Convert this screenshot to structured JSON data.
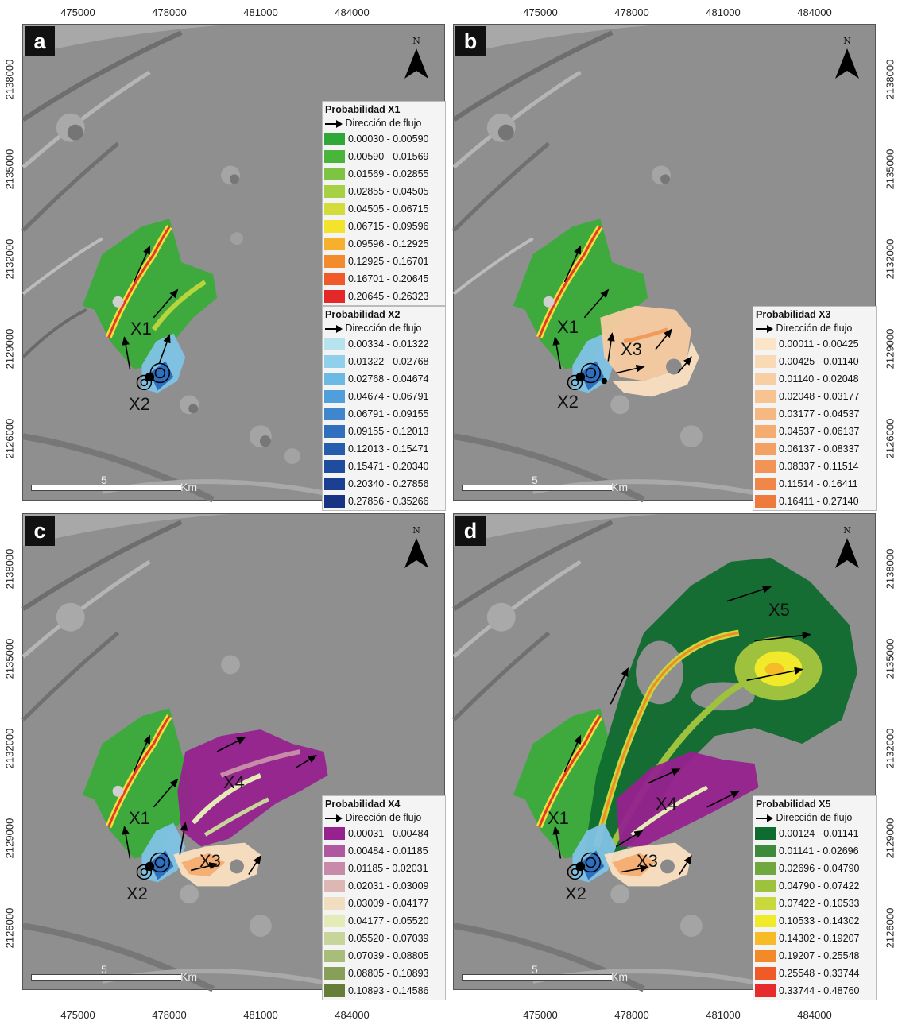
{
  "axes": {
    "x_ticks": [
      "475000",
      "478000",
      "481000",
      "484000"
    ],
    "y_ticks": [
      "2138000",
      "2135000",
      "2132000",
      "2129000",
      "2126000"
    ]
  },
  "panels": [
    {
      "label": "a",
      "scale_number": "5",
      "scale_unit": "Km",
      "north": "N",
      "vents": [
        "X1",
        "X2"
      ],
      "flows": [
        "X1",
        "X2"
      ]
    },
    {
      "label": "b",
      "scale_number": "5",
      "scale_unit": "Km",
      "north": "N",
      "vents": [
        "X1",
        "X2",
        "X3"
      ],
      "flows": [
        "X1",
        "X2",
        "X3"
      ]
    },
    {
      "label": "c",
      "scale_number": "5",
      "scale_unit": "Km",
      "north": "N",
      "vents": [
        "X1",
        "X2",
        "X3",
        "X4"
      ],
      "flows": [
        "X1",
        "X2",
        "X3",
        "X4"
      ]
    },
    {
      "label": "d",
      "scale_number": "5",
      "scale_unit": "Km",
      "north": "N",
      "vents": [
        "X1",
        "X2",
        "X3",
        "X4",
        "X5"
      ],
      "flows": [
        "X1",
        "X2",
        "X3",
        "X4",
        "X5"
      ]
    }
  ],
  "legends": {
    "x1": {
      "title": "Probabilidad X1",
      "flow_label": "Dirección de flujo",
      "classes": [
        "0.00030 - 0.00590",
        "0.00590 - 0.01569",
        "0.01569 - 0.02855",
        "0.02855 - 0.04505",
        "0.04505 - 0.06715",
        "0.06715 - 0.09596",
        "0.09596 - 0.12925",
        "0.12925 - 0.16701",
        "0.16701 - 0.20645",
        "0.20645 - 0.26323"
      ],
      "colors": [
        "#2fa838",
        "#49b53b",
        "#7cc442",
        "#a6d145",
        "#d3dc3a",
        "#f4e32c",
        "#f6b02e",
        "#f38a2c",
        "#f05a2a",
        "#e3282a"
      ]
    },
    "x2": {
      "title": "Probabilidad X2",
      "flow_label": "Dirección de flujo",
      "classes": [
        "0.00334 - 0.01322",
        "0.01322 - 0.02768",
        "0.02768 - 0.04674",
        "0.04674 - 0.06791",
        "0.06791 - 0.09155",
        "0.09155 - 0.12013",
        "0.12013 - 0.15471",
        "0.15471 - 0.20340",
        "0.20340 - 0.27856",
        "0.27856 - 0.35266"
      ],
      "colors": [
        "#b6e3ee",
        "#8fd0ea",
        "#6cb9e3",
        "#519fda",
        "#3f86cc",
        "#2f6fbd",
        "#265cae",
        "#1f4c9f",
        "#1b3f91",
        "#183384"
      ]
    },
    "x3": {
      "title": "Probabilidad X3",
      "flow_label": "Dirección de flujo",
      "classes": [
        "0.00011 - 0.00425",
        "0.00425 - 0.01140",
        "0.01140 - 0.02048",
        "0.02048 - 0.03177",
        "0.03177 - 0.04537",
        "0.04537 - 0.06137",
        "0.06137 - 0.08337",
        "0.08337 - 0.11514",
        "0.11514 - 0.16411",
        "0.16411 - 0.27140"
      ],
      "colors": [
        "#fbe5c8",
        "#f9dab5",
        "#f8cfa2",
        "#f7c491",
        "#f5b880",
        "#f4ac71",
        "#f3a063",
        "#f29455",
        "#f08748",
        "#ee7a3c"
      ]
    },
    "x4": {
      "title": "Probabilidad X4",
      "flow_label": "Dirección de flujo",
      "classes": [
        "0.00031 - 0.00484",
        "0.00484 - 0.01185",
        "0.01185 - 0.02031",
        "0.02031 - 0.03009",
        "0.03009 - 0.04177",
        "0.04177 - 0.05520",
        "0.05520 - 0.07039",
        "0.07039 - 0.08805",
        "0.08805 - 0.10893",
        "0.10893 - 0.14586"
      ],
      "colors": [
        "#96228f",
        "#b0589f",
        "#c88aa9",
        "#dcb7b3",
        "#f1ddbf",
        "#e5ebb6",
        "#c7d59a",
        "#a9bd7b",
        "#879f58",
        "#657d38"
      ]
    },
    "x5": {
      "title": "Probabilidad X5",
      "flow_label": "Dirección de flujo",
      "classes": [
        "0.00124 - 0.01141",
        "0.01141 - 0.02696",
        "0.02696 - 0.04790",
        "0.04790 - 0.07422",
        "0.07422 - 0.10533",
        "0.10533 - 0.14302",
        "0.14302 - 0.19207",
        "0.19207 - 0.25548",
        "0.25548 - 0.33744",
        "0.33744 - 0.48760"
      ],
      "colors": [
        "#0f6b2f",
        "#3d8b3a",
        "#6fa83f",
        "#9ec13e",
        "#c9d83b",
        "#f0ea2a",
        "#f6bb27",
        "#f48a27",
        "#ef5a27",
        "#e52b2b"
      ]
    }
  }
}
